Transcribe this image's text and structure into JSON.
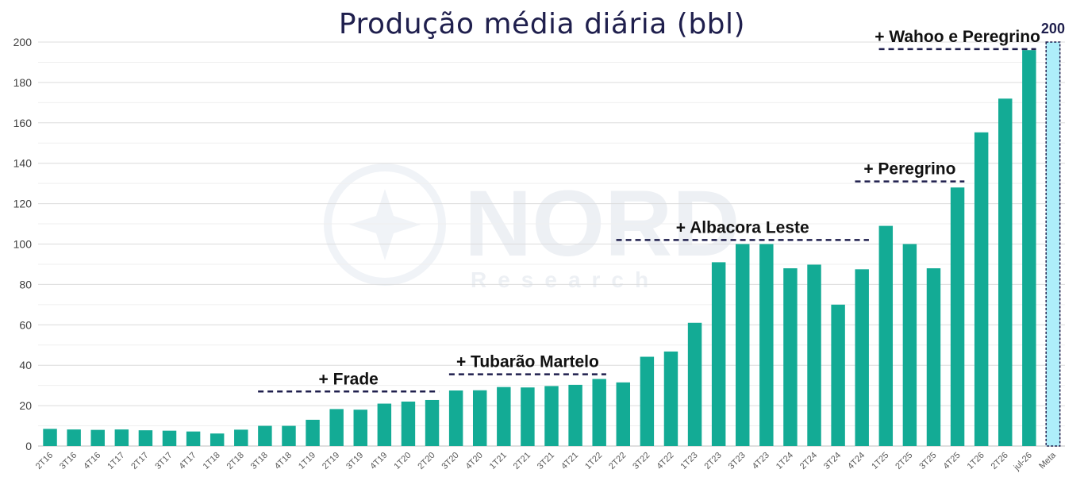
{
  "chart_data": {
    "type": "bar",
    "title": "Produção média diária (bbl)",
    "xlabel": "",
    "ylabel": "",
    "ylim": [
      0,
      200
    ],
    "yticks": [
      0,
      20,
      40,
      60,
      80,
      100,
      120,
      140,
      160,
      180,
      200
    ],
    "grid": true,
    "categories": [
      "2T16",
      "3T16",
      "4T16",
      "1T17",
      "2T17",
      "3T17",
      "4T17",
      "1T18",
      "2T18",
      "3T18",
      "4T18",
      "1T19",
      "2T19",
      "3T19",
      "4T19",
      "1T20",
      "2T20",
      "3T20",
      "4T20",
      "1T21",
      "2T21",
      "3T21",
      "4T21",
      "1T22",
      "2T22",
      "3T22",
      "4T22",
      "1T23",
      "2T23",
      "3T23",
      "4T23",
      "1T24",
      "2T24",
      "3T24",
      "4T24",
      "1T25",
      "2T25",
      "3T25",
      "4T25",
      "1T26",
      "2T26",
      "jul-26",
      "Meta"
    ],
    "values": [
      8.5,
      8.2,
      8,
      8.2,
      7.8,
      7.6,
      7.2,
      6.2,
      8.1,
      10,
      10,
      13,
      18.3,
      18,
      21,
      22,
      22.8,
      27.5,
      27.6,
      29.2,
      29,
      29.7,
      30.3,
      33.2,
      31.5,
      44.2,
      46.8,
      61,
      91,
      100,
      100,
      88,
      89.8,
      70,
      87.5,
      109,
      100,
      88,
      128,
      155.3,
      172,
      196,
      200
    ],
    "bar_color": "#13ab95",
    "target_bar": {
      "category": "Meta",
      "color": "#aeeefa",
      "border_color": "#1f1f4d",
      "label": "200"
    },
    "annotations": [
      {
        "text": "+ Frade",
        "x_start": "3T18",
        "x_end": "2T20",
        "y": 27
      },
      {
        "text": "+ Tubarão Martelo",
        "x_start": "3T20",
        "x_end": "1T22",
        "y": 35.5
      },
      {
        "text": "+ Albacora Leste",
        "x_start": "2T22",
        "x_end": "4T24",
        "y": 102
      },
      {
        "text": "+ Peregrino",
        "x_start": "4T24",
        "x_end": "4T25",
        "y": 131
      },
      {
        "text": "+ Wahoo e Peregrino",
        "x_start": "1T25",
        "x_end": "jul-26",
        "y": 196.5
      }
    ]
  },
  "watermark": {
    "brand": "NORD",
    "sub": "Research"
  }
}
